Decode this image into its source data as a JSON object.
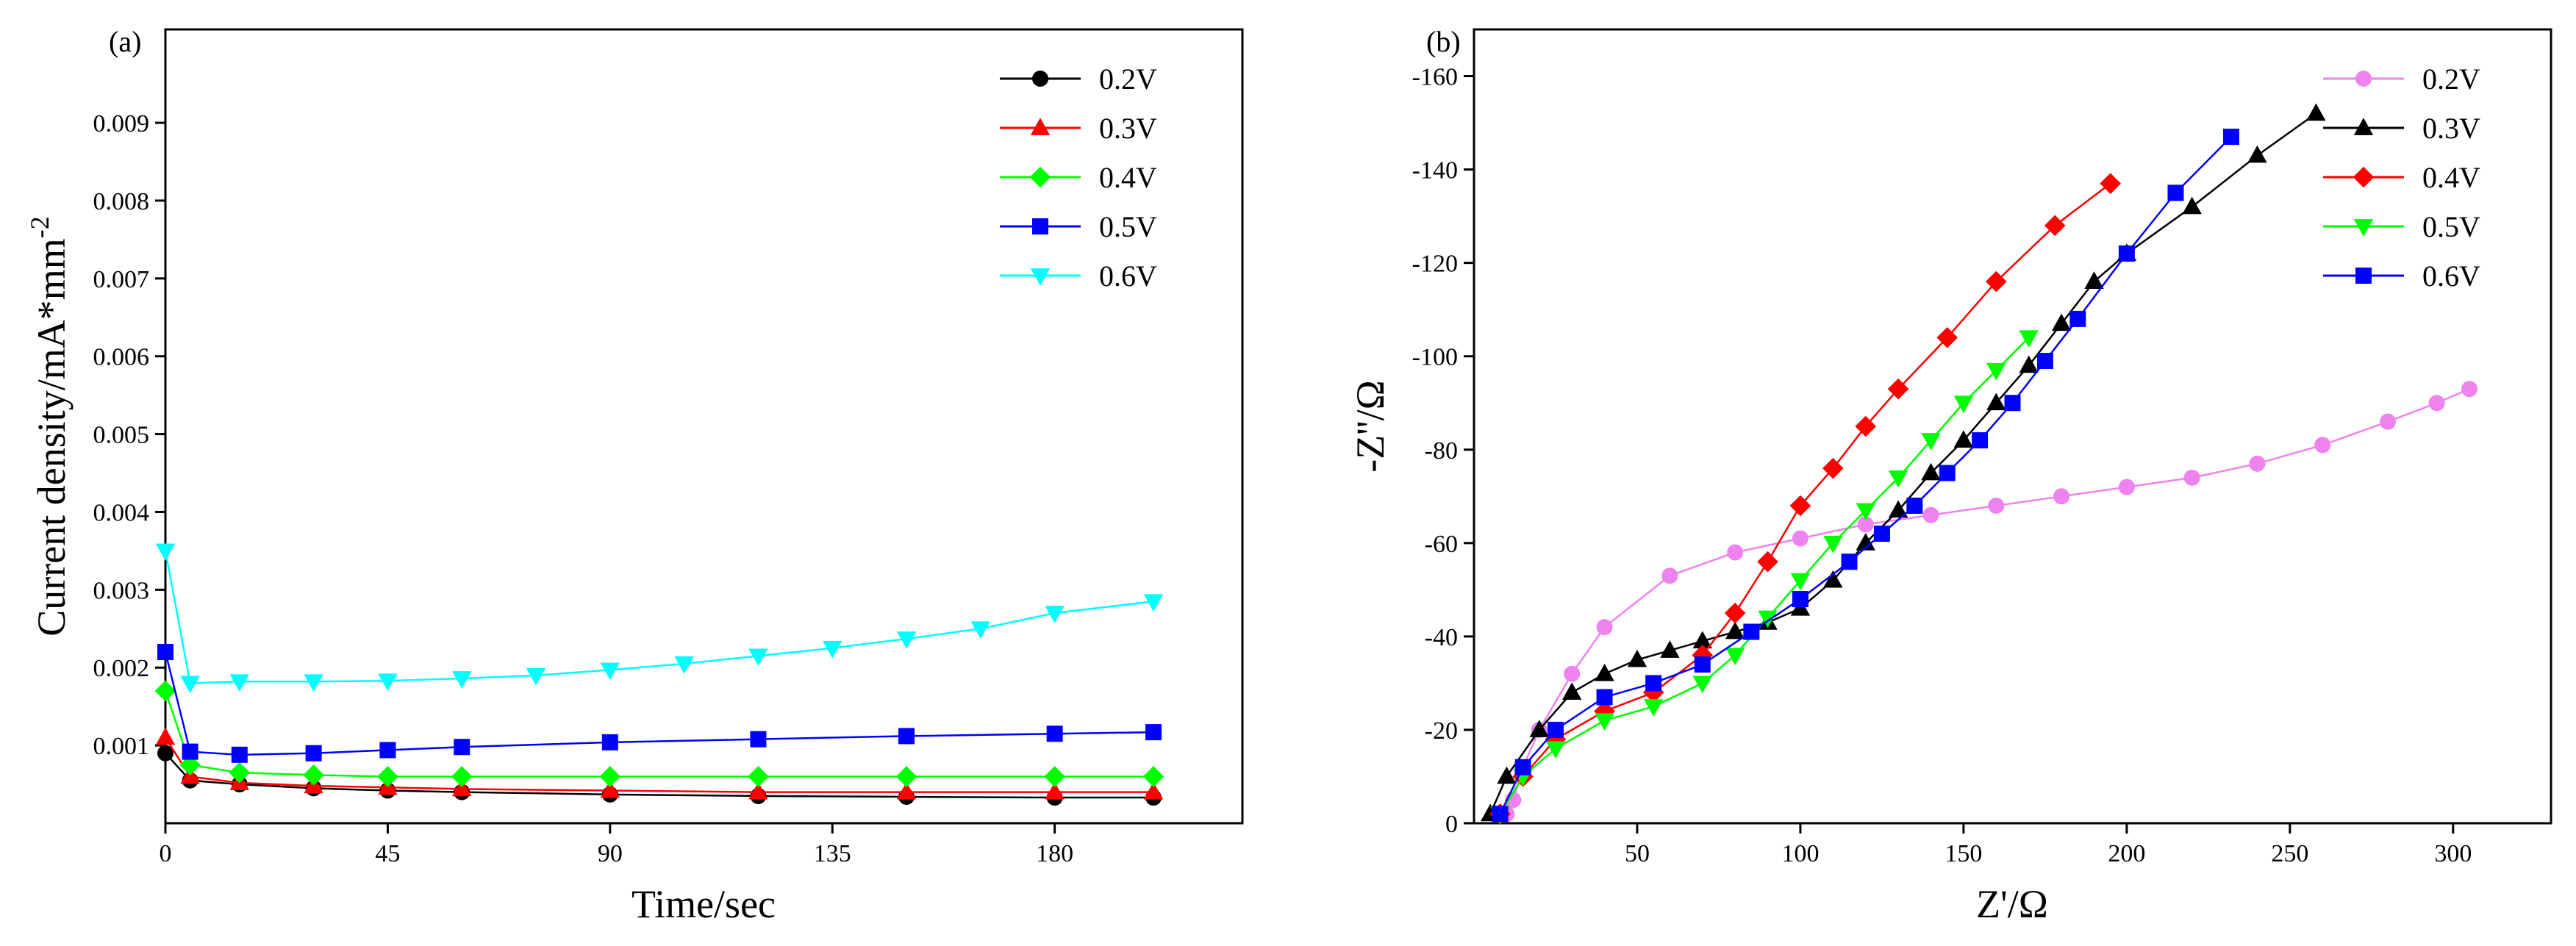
{
  "chart_data": [
    {
      "panel": "(a)",
      "type": "line",
      "title": "",
      "xlabel": "Time/sec",
      "ylabel": "Current density/mA*mm",
      "ylabel_sup": "-2",
      "xlim": [
        0,
        218
      ],
      "ylim": [
        0,
        0.0102
      ],
      "xticks": [
        0,
        45,
        90,
        135,
        180
      ],
      "xtick_labels": [
        "0",
        "45",
        "90",
        "135",
        "180"
      ],
      "yticks": [
        0.001,
        0.002,
        0.003,
        0.004,
        0.005,
        0.006,
        0.007,
        0.008,
        0.009
      ],
      "ytick_labels": [
        "0.001",
        "0.002",
        "0.003",
        "0.004",
        "0.005",
        "0.006",
        "0.007",
        "0.008",
        "0.009"
      ],
      "legend_position": "top-right",
      "series": [
        {
          "name": "0.2V",
          "marker": "circle",
          "color": "#000000",
          "x": [
            0,
            5,
            15,
            30,
            45,
            60,
            90,
            120,
            150,
            180,
            200
          ],
          "y": [
            0.0009,
            0.00055,
            0.0005,
            0.00045,
            0.00042,
            0.0004,
            0.00037,
            0.00035,
            0.00034,
            0.00033,
            0.00033
          ]
        },
        {
          "name": "0.3V",
          "marker": "triangle-up",
          "color": "#ff0000",
          "x": [
            0,
            5,
            15,
            30,
            45,
            60,
            90,
            120,
            150,
            180,
            200
          ],
          "y": [
            0.0011,
            0.0006,
            0.00052,
            0.00048,
            0.00046,
            0.00044,
            0.00042,
            0.0004,
            0.0004,
            0.0004,
            0.0004
          ]
        },
        {
          "name": "0.4V",
          "marker": "diamond",
          "color": "#00ff00",
          "x": [
            0,
            5,
            15,
            30,
            45,
            60,
            90,
            120,
            150,
            180,
            200
          ],
          "y": [
            0.0017,
            0.00075,
            0.00065,
            0.00062,
            0.0006,
            0.0006,
            0.0006,
            0.0006,
            0.0006,
            0.0006,
            0.0006
          ]
        },
        {
          "name": "0.5V",
          "marker": "square",
          "color": "#0000ff",
          "x": [
            0,
            5,
            15,
            30,
            45,
            60,
            90,
            120,
            150,
            180,
            200
          ],
          "y": [
            0.0022,
            0.00092,
            0.00088,
            0.0009,
            0.00094,
            0.00098,
            0.00104,
            0.00108,
            0.00112,
            0.00115,
            0.00117
          ]
        },
        {
          "name": "0.6V",
          "marker": "triangle-down",
          "color": "#00ffff",
          "x": [
            0,
            5,
            15,
            30,
            45,
            60,
            75,
            90,
            105,
            120,
            135,
            150,
            165,
            180,
            200
          ],
          "y": [
            0.0035,
            0.0018,
            0.00182,
            0.00182,
            0.00183,
            0.00186,
            0.0019,
            0.00197,
            0.00205,
            0.00215,
            0.00225,
            0.00237,
            0.0025,
            0.0027,
            0.00285
          ]
        }
      ]
    },
    {
      "panel": "(b)",
      "type": "line",
      "title": "",
      "xlabel": "Z'/Ω",
      "ylabel": "-Z''/Ω",
      "xlim": [
        0,
        330
      ],
      "ylim": [
        0,
        -170
      ],
      "xticks": [
        50,
        100,
        150,
        200,
        250,
        300
      ],
      "xtick_labels": [
        "50",
        "100",
        "150",
        "200",
        "250",
        "300"
      ],
      "yticks": [
        0,
        -20,
        -40,
        -60,
        -80,
        -100,
        -120,
        -140,
        -160
      ],
      "ytick_labels": [
        "0",
        "-20",
        "-40",
        "-60",
        "-80",
        "-100",
        "-120",
        "-140",
        "-160"
      ],
      "legend_position": "top-right",
      "series": [
        {
          "name": "0.2V",
          "marker": "circle",
          "color": "#ee82ee",
          "x": [
            10,
            12,
            15,
            20,
            30,
            40,
            60,
            80,
            100,
            120,
            140,
            160,
            180,
            200,
            220,
            240,
            260,
            280,
            295,
            305
          ],
          "y": [
            -2,
            -5,
            -12,
            -20,
            -32,
            -42,
            -53,
            -58,
            -61,
            -64,
            -66,
            -68,
            -70,
            -72,
            -74,
            -77,
            -81,
            -86,
            -90,
            -93
          ]
        },
        {
          "name": "0.3V",
          "marker": "triangle-up",
          "color": "#000000",
          "x": [
            5,
            10,
            20,
            30,
            40,
            50,
            60,
            70,
            80,
            90,
            100,
            110,
            120,
            130,
            140,
            150,
            160,
            170,
            180,
            190,
            200,
            220,
            240,
            258
          ],
          "y": [
            -2,
            -10,
            -20,
            -28,
            -32,
            -35,
            -37,
            -39,
            -41,
            -43,
            -46,
            -52,
            -60,
            -67,
            -75,
            -82,
            -90,
            -98,
            -107,
            -116,
            -122,
            -132,
            -143,
            -152
          ]
        },
        {
          "name": "0.4V",
          "marker": "diamond",
          "color": "#ff0000",
          "x": [
            8,
            15,
            25,
            40,
            55,
            70,
            80,
            90,
            100,
            110,
            120,
            130,
            145,
            160,
            178,
            195
          ],
          "y": [
            -2,
            -10,
            -18,
            -24,
            -28,
            -36,
            -45,
            -56,
            -68,
            -76,
            -85,
            -93,
            -104,
            -116,
            -128,
            -137
          ]
        },
        {
          "name": "0.5V",
          "marker": "triangle-down",
          "color": "#00ff00",
          "x": [
            8,
            15,
            25,
            40,
            55,
            70,
            80,
            90,
            100,
            110,
            120,
            130,
            140,
            150,
            160,
            170
          ],
          "y": [
            -2,
            -10,
            -16,
            -22,
            -25,
            -30,
            -36,
            -44,
            -52,
            -60,
            -67,
            -74,
            -82,
            -90,
            -97,
            -104
          ]
        },
        {
          "name": "0.6V",
          "marker": "square",
          "color": "#0000ff",
          "x": [
            8,
            15,
            25,
            40,
            55,
            70,
            85,
            100,
            115,
            125,
            135,
            145,
            155,
            165,
            175,
            185,
            200,
            215,
            232
          ],
          "y": [
            -2,
            -12,
            -20,
            -27,
            -30,
            -34,
            -41,
            -48,
            -56,
            -62,
            -68,
            -75,
            -82,
            -90,
            -99,
            -108,
            -122,
            -135,
            -147
          ]
        }
      ]
    }
  ]
}
